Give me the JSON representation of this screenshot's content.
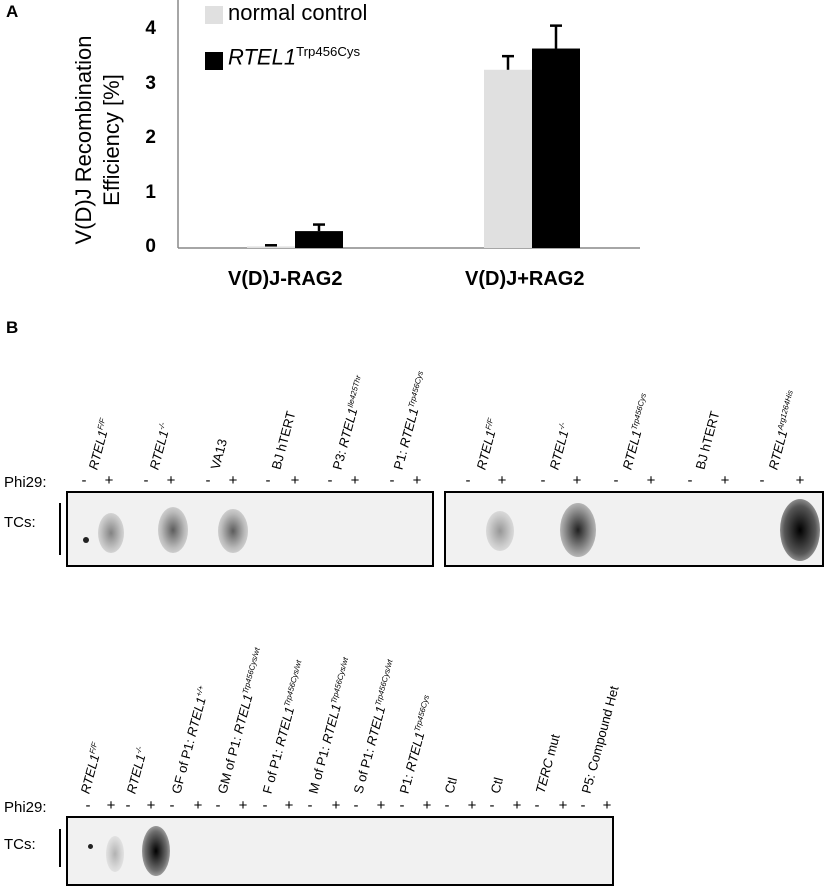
{
  "panel_a": {
    "letter": "A",
    "chart_data": {
      "type": "bar",
      "ylabel_line1": "V(D)J Recombination",
      "ylabel_line2": "Efficiency [%]",
      "categories": [
        "V(D)J-RAG2",
        "V(D)J+RAG2"
      ],
      "yticks": [
        "0",
        "1",
        "2",
        "3",
        "4"
      ],
      "ylim": [
        0,
        4.4
      ],
      "series": [
        {
          "name": "normal control",
          "color": "#e0e0e0",
          "values": [
            0.03,
            3.27
          ],
          "errors": [
            0.02,
            0.25
          ]
        },
        {
          "name": "RTEL1",
          "name_sup": "Trp456Cys",
          "color": "#000000",
          "values": [
            0.31,
            3.66
          ],
          "errors": [
            0.12,
            0.42
          ]
        }
      ]
    }
  },
  "panel_b": {
    "letter": "B",
    "phi_label": "Phi29:",
    "tcs_label": "TCs:",
    "minus": "-",
    "plus": "+",
    "blot1": {
      "lanes": [
        {
          "base": "RTEL1",
          "sup": "F/F",
          "italic": true
        },
        {
          "base": "RTEL1",
          "sup": "-/-",
          "italic": true
        },
        {
          "base": "VA13",
          "sup": "",
          "italic": false
        },
        {
          "base": "BJ hTERT",
          "sup": "",
          "italic": false
        },
        {
          "prefix": "P3: ",
          "base": "RTEL1",
          "sup": "Ile425Thr",
          "italic": true
        },
        {
          "prefix": "P1: ",
          "base": "RTEL1",
          "sup": "Trp456Cys",
          "italic": true
        }
      ]
    },
    "blot2": {
      "lanes": [
        {
          "base": "RTEL1",
          "sup": "F/F",
          "italic": true
        },
        {
          "base": "RTEL1",
          "sup": "-/-",
          "italic": true
        },
        {
          "base": "RTEL1",
          "sup": "Trp456Cys",
          "italic": true
        },
        {
          "base": "BJ hTERT",
          "sup": "",
          "italic": false
        },
        {
          "base": "RTEL1",
          "sup": "Arg1264His",
          "italic": true
        }
      ]
    },
    "blot3": {
      "lanes": [
        {
          "base": "RTEL1",
          "sup": "F/F",
          "italic": true
        },
        {
          "base": "RTEL1",
          "sup": "-/-",
          "italic": true
        },
        {
          "prefix": "GF of P1: ",
          "base": "RTEL1",
          "sup": "+/+",
          "italic": true
        },
        {
          "prefix": "GM of P1: ",
          "base": "RTEL1",
          "sup": "Trp456Cys/wt",
          "italic": true
        },
        {
          "prefix": "F of P1: ",
          "base": "RTEL1",
          "sup": "Trp456Cys/wt",
          "italic": true
        },
        {
          "prefix": "M of P1: ",
          "base": "RTEL1",
          "sup": "Trp456Cys/wt",
          "italic": true
        },
        {
          "prefix": "S of P1: ",
          "base": "RTEL1",
          "sup": "Trp456Cys/wt",
          "italic": true
        },
        {
          "prefix": "P1: ",
          "base": "RTEL1",
          "sup": "Trp456Cys",
          "italic": true
        },
        {
          "base": "Ctl",
          "sup": "",
          "italic": false
        },
        {
          "base": "Ctl",
          "sup": "",
          "italic": false
        },
        {
          "base": "TERC",
          "suffix": " mut",
          "sup": "",
          "italic": true
        },
        {
          "base": "P5: Compound Het",
          "sup": "",
          "italic": false
        }
      ]
    }
  }
}
